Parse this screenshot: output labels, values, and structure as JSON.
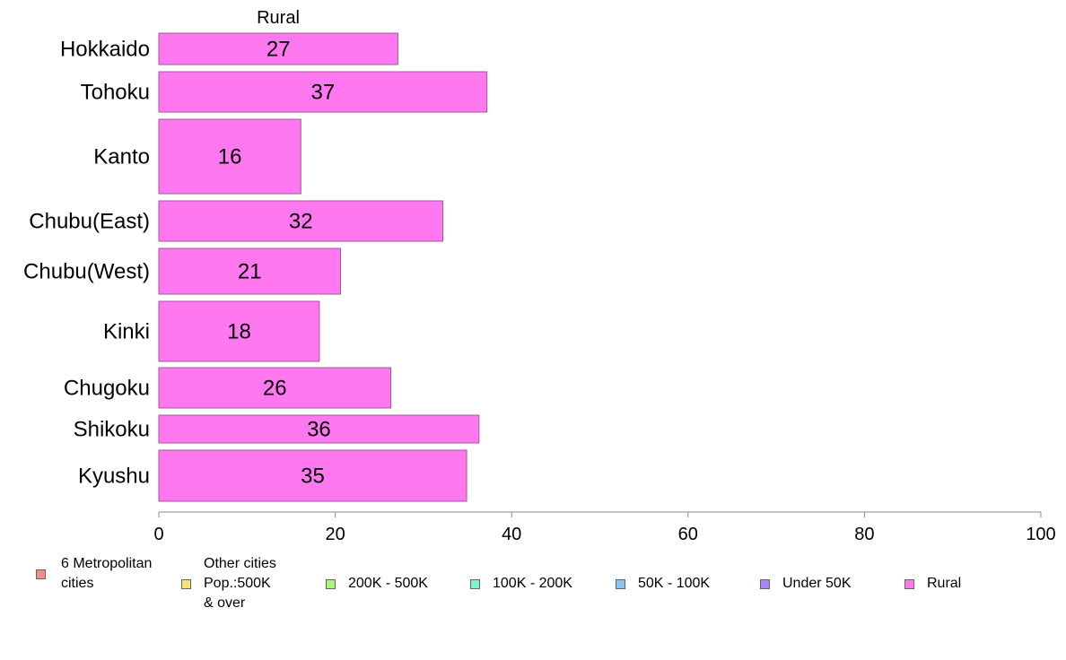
{
  "chart_data": {
    "type": "bar",
    "orientation": "horizontal",
    "title": "Rural",
    "categories": [
      "Hokkaido",
      "Tohoku",
      "Kanto",
      "Chubu(East)",
      "Chubu(West)",
      "Kinki",
      "Chugoku",
      "Shikoku",
      "Kyushu"
    ],
    "series": [
      {
        "name": "Rural",
        "values": [
          27.1,
          37.2,
          16.1,
          32.2,
          20.6,
          18.2,
          26.3,
          36.3,
          34.9
        ],
        "labels": [
          "27",
          "37",
          "16",
          "32",
          "21",
          "18",
          "26",
          "36",
          "35"
        ],
        "color": "#ff78f0"
      }
    ],
    "xlim": [
      0,
      100
    ],
    "xticks": [
      "0",
      "20",
      "40",
      "60",
      "80",
      "100"
    ],
    "grid": false,
    "legend_position": "bottom"
  },
  "legend": [
    {
      "label": "6 Metropolitan\n cities",
      "color": "#f88c84"
    },
    {
      "label": "Other cities\nPop.:500K\n & over",
      "color": "#f8e07c"
    },
    {
      "label": "200K - 500K",
      "color": "#a8f47c"
    },
    {
      "label": "100K - 200K",
      "color": "#7cf4c4"
    },
    {
      "label": "50K - 100K",
      "color": "#84c8f8"
    },
    {
      "label": "Under 50K",
      "color": "#a888f8"
    },
    {
      "label": "Rural",
      "color": "#ff78f0"
    }
  ]
}
